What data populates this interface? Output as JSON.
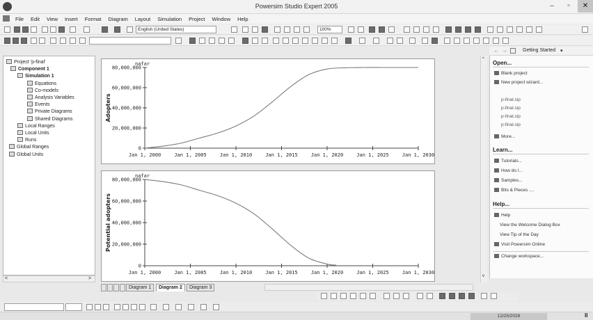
{
  "window": {
    "title": "Powersim Studio Expert 2005",
    "minimize": "–",
    "maximize": "▫",
    "close": "✕"
  },
  "menu": [
    "File",
    "Edit",
    "View",
    "Insert",
    "Format",
    "Diagram",
    "Layout",
    "Simulation",
    "Project",
    "Window",
    "Help"
  ],
  "toolbar": {
    "language": "English (United States)",
    "zoom": "100%"
  },
  "tree": {
    "items": [
      {
        "label": "Project 'p-final'",
        "icon": "project-icon",
        "bold": false
      },
      {
        "label": "Component 1",
        "icon": "component-icon",
        "bold": true
      },
      {
        "label": "Simulation 1",
        "icon": "simulation-icon",
        "bold": true
      },
      {
        "label": "Equations",
        "icon": "equations-icon",
        "bold": false
      },
      {
        "label": "Co-models",
        "icon": "co-models-icon",
        "bold": false
      },
      {
        "label": "Analysis Variables",
        "icon": "analysis-variables-icon",
        "bold": false
      },
      {
        "label": "Events",
        "icon": "events-icon",
        "bold": false
      },
      {
        "label": "Private Diagrams",
        "icon": "private-diagrams-icon",
        "bold": false
      },
      {
        "label": "Shared Diagrams",
        "icon": "shared-diagrams-icon",
        "bold": false
      },
      {
        "label": "Local Ranges",
        "icon": "ranges-icon",
        "bold": false
      },
      {
        "label": "Local Units",
        "icon": "units-icon",
        "bold": false
      },
      {
        "label": "Runs",
        "icon": "runs-icon",
        "bold": false
      },
      {
        "label": "Global Ranges",
        "icon": "ranges-icon",
        "bold": false
      },
      {
        "label": "Global Units",
        "icon": "units-icon",
        "bold": false
      }
    ]
  },
  "chart_data": [
    {
      "type": "line",
      "unit_label": "nafar",
      "ylabel": "Adopters",
      "ylim": [
        0,
        80000000
      ],
      "yticks": [
        "0",
        "20,000,000",
        "40,000,000",
        "60,000,000",
        "80,000,000"
      ],
      "xticks": [
        "Jan 1, 2000",
        "Jan 1, 2005",
        "Jan 1, 2010",
        "Jan 1, 2015",
        "Jan 1, 2020",
        "Jan 1, 2025",
        "Jan 1, 2030"
      ],
      "x": [
        2000,
        2002,
        2004,
        2006,
        2008,
        2010,
        2012,
        2014,
        2016,
        2018,
        2020,
        2022,
        2024,
        2026,
        2028,
        2030
      ],
      "values": [
        0,
        2000000,
        5000000,
        10000000,
        15000000,
        22000000,
        32000000,
        46000000,
        61000000,
        73000000,
        78500000,
        79700000,
        80000000,
        80000000,
        80000000,
        80000000
      ]
    },
    {
      "type": "line",
      "unit_label": "nafar",
      "ylabel": "Potential adopters",
      "ylim": [
        0,
        80000000
      ],
      "yticks": [
        "0",
        "20,000,000",
        "40,000,000",
        "60,000,000",
        "80,000,000"
      ],
      "xticks": [
        "Jan 1, 2000",
        "Jan 1, 2005",
        "Jan 1, 2010",
        "Jan 1, 2015",
        "Jan 1, 2020",
        "Jan 1, 2025",
        "Jan 1, 2030"
      ],
      "x": [
        2000,
        2002,
        2004,
        2006,
        2008,
        2010,
        2012,
        2014,
        2016,
        2018,
        2020,
        2021
      ],
      "values": [
        80000000,
        78000000,
        75000000,
        70000000,
        65000000,
        58000000,
        48000000,
        34000000,
        19000000,
        7000000,
        1500000,
        500000
      ]
    }
  ],
  "diagram_tabs": [
    "Diagram 1",
    "Diagram 2",
    "Diagram 3"
  ],
  "right_pane": {
    "title": "Getting Started",
    "open_heading": "Open...",
    "open_links": [
      "Blank project",
      "New project wizard..."
    ],
    "recent_files": [
      "p-final.sip",
      "p-final.sip",
      "p-final.sip",
      "p-final.sip"
    ],
    "more_label": "More...",
    "learn_heading": "Learn...",
    "learn_links": [
      "Tutorials...",
      "How do I...",
      "Samples...",
      "Bits & Pieces ...."
    ],
    "help_heading": "Help...",
    "help_links": [
      "Help",
      "View the Welcome Dialog Box",
      "View Tip of the Day",
      "Visit Powersim Online"
    ],
    "change_workspace": "Change workspace..."
  },
  "status": {
    "date": "12/25/2029"
  }
}
